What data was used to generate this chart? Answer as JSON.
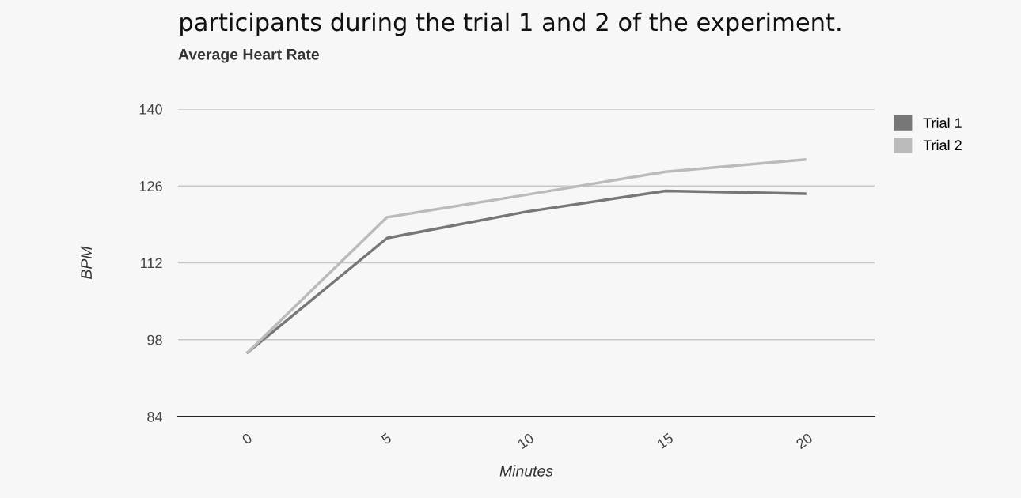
{
  "chart_data": {
    "type": "line",
    "title": "Average Heart Rate",
    "xlabel": "Minutes",
    "ylabel": "BPM",
    "annotations": [
      "participants during the trial 1 and 2 of the experiment."
    ],
    "categories": [
      "0",
      "5",
      "10",
      "15",
      "20"
    ],
    "series": [
      {
        "name": "Trial 1",
        "color": "#777777",
        "values": [
          95.7,
          116.5,
          121.3,
          125.1,
          124.6
        ]
      },
      {
        "name": "Trial 2",
        "color": "#bbbbbb",
        "values": [
          95.7,
          120.3,
          124.4,
          128.6,
          130.8
        ]
      }
    ],
    "ylim": [
      84,
      140
    ],
    "yticks": [
      84,
      98,
      112,
      126,
      140
    ],
    "grid": "y",
    "legend": "top right",
    "marker": "none",
    "line_style": "solid"
  }
}
